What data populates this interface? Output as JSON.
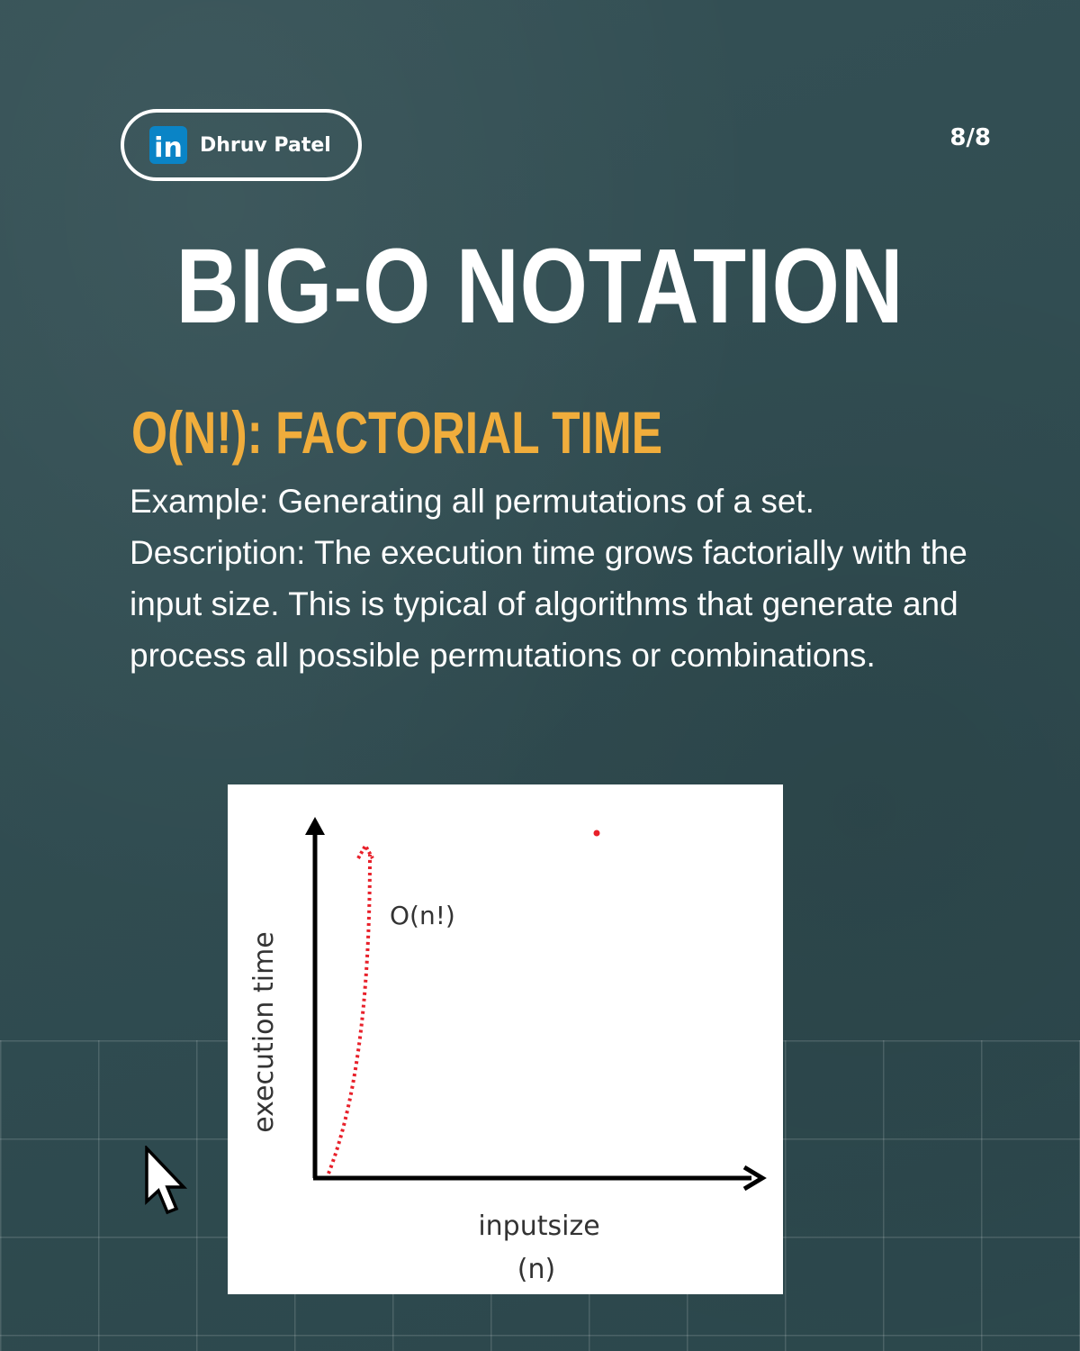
{
  "badge": {
    "name": "Dhruv Patel",
    "logo_text": "in",
    "logo_color": "#0a84c6"
  },
  "page_indicator": "8/8",
  "title": "BIG-O NOTATION",
  "subtitle": "O(N!): FACTORIAL TIME",
  "body": {
    "example": "Example: Generating all permutations of a set.",
    "description": "Description: The execution time grows factorially with the input size. This is typical of algorithms that generate and process all possible permutations or combinations."
  },
  "diagram": {
    "curve_label": "O(n!)",
    "y_axis_label": "execution time",
    "x_axis_label_line1": "inputsize",
    "x_axis_label_line2": "(n)",
    "curve_color": "#e8202a"
  },
  "colors": {
    "background": "#2e4b50",
    "accent": "#f0ad3c",
    "text": "#ffffff"
  }
}
